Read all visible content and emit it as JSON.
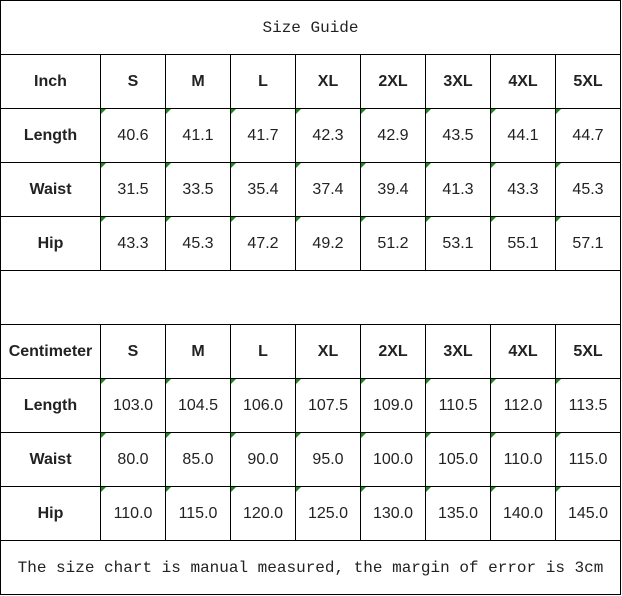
{
  "title": "Size Guide",
  "inch": {
    "header": [
      "Inch",
      "S",
      "M",
      "L",
      "XL",
      "2XL",
      "3XL",
      "4XL",
      "5XL"
    ],
    "rows": [
      {
        "label": "Length",
        "values": [
          "40.6",
          "41.1",
          "41.7",
          "42.3",
          "42.9",
          "43.5",
          "44.1",
          "44.7"
        ]
      },
      {
        "label": "Waist",
        "values": [
          "31.5",
          "33.5",
          "35.4",
          "37.4",
          "39.4",
          "41.3",
          "43.3",
          "45.3"
        ]
      },
      {
        "label": "Hip",
        "values": [
          "43.3",
          "45.3",
          "47.2",
          "49.2",
          "51.2",
          "53.1",
          "55.1",
          "57.1"
        ]
      }
    ]
  },
  "cm": {
    "header": [
      "Centimeter",
      "S",
      "M",
      "L",
      "XL",
      "2XL",
      "3XL",
      "4XL",
      "5XL"
    ],
    "rows": [
      {
        "label": "Length",
        "values": [
          "103.0",
          "104.5",
          "106.0",
          "107.5",
          "109.0",
          "110.5",
          "112.0",
          "113.5"
        ]
      },
      {
        "label": "Waist",
        "values": [
          "80.0",
          "85.0",
          "90.0",
          "95.0",
          "100.0",
          "105.0",
          "110.0",
          "115.0"
        ]
      },
      {
        "label": "Hip",
        "values": [
          "110.0",
          "115.0",
          "120.0",
          "125.0",
          "130.0",
          "135.0",
          "140.0",
          "145.0"
        ]
      }
    ]
  },
  "note": "The size chart is manual measured, the margin of error is 3cm",
  "colors": {
    "error_indicator": "#1a8a1a",
    "grid": "#000000"
  }
}
